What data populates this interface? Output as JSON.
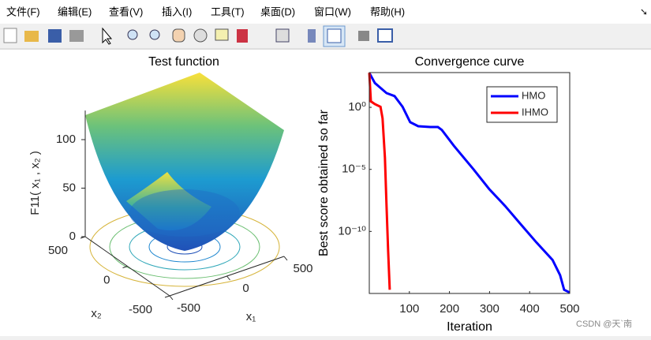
{
  "menu": [
    "文件(F)",
    "编辑(E)",
    "查看(V)",
    "插入(I)",
    "工具(T)",
    "桌面(D)",
    "窗口(W)",
    "帮助(H)"
  ],
  "watermark": "CSDN @天`南",
  "chart_data": [
    {
      "type": "surface3d",
      "title": "Test function",
      "xlabel": "x₁",
      "ylabel": "x₂",
      "zlabel": "F11( x₁ , x₂ )",
      "xlim": [
        -500,
        500
      ],
      "ylim": [
        -500,
        500
      ],
      "zlim": [
        0,
        130
      ],
      "xticks": [
        -500,
        0,
        500
      ],
      "yticks": [
        -500,
        0,
        500
      ],
      "zticks": [
        0,
        50,
        100
      ]
    },
    {
      "type": "line",
      "title": "Convergence curve",
      "xlabel": "Iteration",
      "ylabel": "Best score obtained so far",
      "log_y": true,
      "legend": "upper right",
      "xlim": [
        0,
        500
      ],
      "ylim": [
        1e-15,
        630
      ],
      "xticks": [
        100,
        200,
        300,
        400,
        500
      ],
      "yticks": [
        {
          "value": 1,
          "label": "10⁰"
        },
        {
          "value": 1e-05,
          "label": "10⁻⁵"
        },
        {
          "value": 1e-10,
          "label": "10⁻¹⁰"
        }
      ],
      "series": [
        {
          "name": "HMO",
          "color": "#0000ff",
          "x": [
            0,
            14,
            43,
            63,
            83,
            102,
            122,
            152,
            171,
            181,
            211,
            260,
            299,
            339,
            378,
            417,
            457,
            476,
            486,
            500
          ],
          "values": [
            600,
            90,
            14,
            8,
            1.1,
            0.063,
            0.03,
            0.026,
            0.026,
            0.015,
            0.0008,
            1e-05,
            2.6e-07,
            1.1e-08,
            3.7e-10,
            1.3e-11,
            5e-13,
            3e-14,
            2e-15,
            1.2e-15
          ]
        },
        {
          "name": "IHMO",
          "color": "#ff0000",
          "x": [
            0,
            4,
            14,
            28,
            33,
            39,
            43,
            47,
            51
          ],
          "values": [
            600,
            3,
            1.8,
            1.1,
            0.13,
            9e-05,
            1.4e-08,
            2.5e-12,
            2e-15
          ]
        }
      ]
    }
  ]
}
